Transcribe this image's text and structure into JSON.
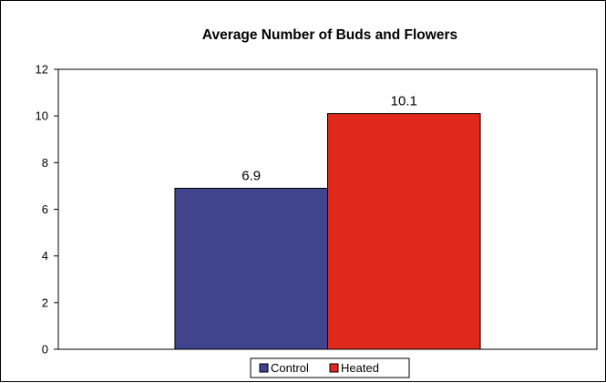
{
  "chart_data": {
    "type": "bar",
    "title": "Average Number of Buds and Flowers",
    "xlabel": "",
    "ylabel": "",
    "categories": [
      ""
    ],
    "series": [
      {
        "name": "Control",
        "values": [
          6.9
        ],
        "color": "#3F448D",
        "label": "6.9"
      },
      {
        "name": "Heated",
        "values": [
          10.1
        ],
        "color": "#E0291A",
        "label": "10.1"
      }
    ],
    "ylim": [
      0,
      12
    ],
    "yticks": [
      0,
      2,
      4,
      6,
      8,
      10,
      12
    ],
    "ytick_labels": [
      "0",
      "2",
      "4",
      "6",
      "8",
      "10",
      "12"
    ],
    "grid": false,
    "legend_position": "bottom"
  }
}
